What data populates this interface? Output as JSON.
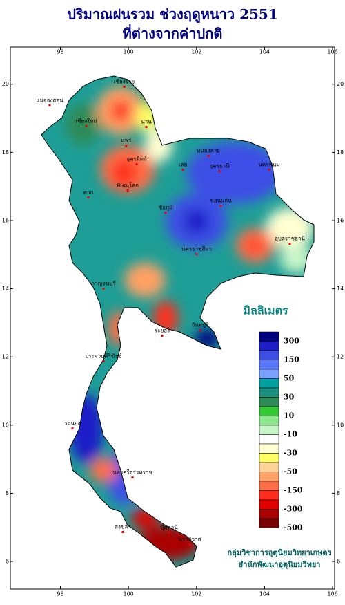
{
  "title": [
    "ปริมาณฝนรวม ช่วงฤดูหนาว 2551",
    "ที่ต่างจากค่าปกติ"
  ],
  "map": {
    "xticks": [
      98,
      100,
      102,
      104,
      106
    ],
    "xlim": [
      96.53,
      106.06
    ],
    "yticks": [
      6,
      8,
      10,
      12,
      14,
      16,
      18,
      20
    ],
    "ylim": [
      5.19,
      21.09
    ],
    "places": [
      "เชียงราย",
      "แม่ฮ่องสอน",
      "เชียงใหม่",
      "น่าน",
      "แพร่",
      "อุตรดิตถ์",
      "ตาก",
      "พิษณุโลก",
      "หนองคาย",
      "อุดรธานี",
      "นครพนม",
      "เลย",
      "ขอนแก่น",
      "ชัยภูมิ",
      "นครราชสีมา",
      "อุบลราชธานี",
      "กาญจนบุรี",
      "ระยอง",
      "จันทบุรี",
      "ประจวบคีรีขันธ์",
      "ระนอง",
      "นครศรีธรรมราช",
      "สงขลา",
      "ปัตตานี",
      "นราธิวาส"
    ]
  },
  "legend": {
    "title": "มิลลิเมตร",
    "labels": [
      300,
      150,
      50,
      30,
      10,
      -10,
      -30,
      -50,
      -150,
      -300,
      -500
    ],
    "colors": [
      "#000080",
      "#1e1ec8",
      "#3c50e6",
      "#5a78ff",
      "#78a0ff",
      "#00a0a0",
      "#1e9080",
      "#2e8b57",
      "#32c832",
      "#8ce68c",
      "#c8f5c8",
      "#ffffff",
      "#ffffd2",
      "#ffff64",
      "#ffd296",
      "#ffa064",
      "#ff6e46",
      "#ff2d1e",
      "#e10000",
      "#aa0000",
      "#780000"
    ]
  },
  "credits": [
    "กลุ่มวิชาการอุตุนิยมวิทยาเกษตร",
    "สำนักพัฒนาอุตุนิยมวิทยา"
  ]
}
